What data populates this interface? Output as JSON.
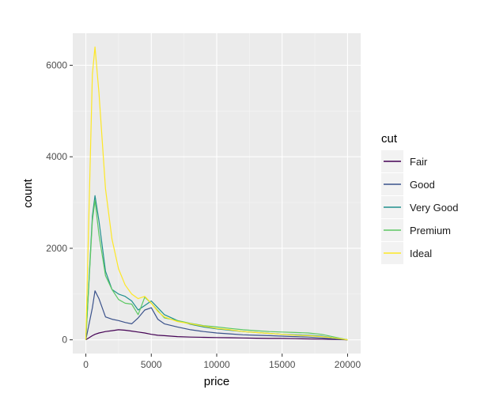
{
  "chart_data": {
    "type": "line",
    "title": "",
    "xlabel": "price",
    "ylabel": "count",
    "xlim": [
      -1000,
      21000
    ],
    "ylim": [
      -300,
      6700
    ],
    "x_ticks": [
      0,
      5000,
      10000,
      15000,
      20000
    ],
    "x_tick_labels": [
      "0",
      "5000",
      "10000",
      "15000",
      "20000"
    ],
    "y_ticks": [
      0,
      2000,
      4000,
      6000
    ],
    "y_tick_labels": [
      "0",
      "2000",
      "4000",
      "6000"
    ],
    "grid": true,
    "background": "#ebebeb",
    "legend": {
      "title": "cut",
      "position": "right"
    },
    "x": [
      0,
      500,
      700,
      1000,
      1500,
      2000,
      2500,
      3000,
      3500,
      4000,
      4500,
      5000,
      5500,
      6000,
      7000,
      8000,
      9000,
      10000,
      11000,
      12000,
      13000,
      14000,
      15000,
      16000,
      17000,
      18000,
      19000,
      20000
    ],
    "series": [
      {
        "name": "Fair",
        "color": "#440154",
        "values": [
          0,
          90,
          120,
          150,
          180,
          200,
          220,
          210,
          190,
          170,
          150,
          120,
          100,
          90,
          70,
          60,
          55,
          50,
          45,
          40,
          35,
          30,
          30,
          25,
          20,
          15,
          10,
          0
        ]
      },
      {
        "name": "Good",
        "color": "#3b528b",
        "values": [
          0,
          700,
          1070,
          900,
          500,
          450,
          420,
          380,
          350,
          480,
          650,
          700,
          450,
          350,
          280,
          220,
          180,
          150,
          130,
          110,
          100,
          90,
          80,
          70,
          60,
          40,
          20,
          0
        ]
      },
      {
        "name": "Very Good",
        "color": "#21908d",
        "values": [
          0,
          2700,
          3150,
          2600,
          1500,
          1100,
          1000,
          950,
          850,
          650,
          750,
          850,
          700,
          550,
          420,
          340,
          280,
          240,
          210,
          180,
          160,
          140,
          120,
          110,
          100,
          80,
          40,
          0
        ]
      },
      {
        "name": "Premium",
        "color": "#5dc863",
        "values": [
          0,
          2600,
          3050,
          2300,
          1400,
          1100,
          880,
          800,
          780,
          550,
          930,
          800,
          640,
          480,
          420,
          360,
          310,
          280,
          250,
          220,
          200,
          180,
          170,
          160,
          150,
          120,
          60,
          0
        ]
      },
      {
        "name": "Ideal",
        "color": "#fde725",
        "values": [
          0,
          5800,
          6400,
          5400,
          3300,
          2200,
          1550,
          1200,
          1000,
          900,
          950,
          800,
          620,
          500,
          400,
          350,
          300,
          250,
          220,
          180,
          160,
          140,
          120,
          100,
          90,
          70,
          40,
          0
        ]
      }
    ]
  }
}
